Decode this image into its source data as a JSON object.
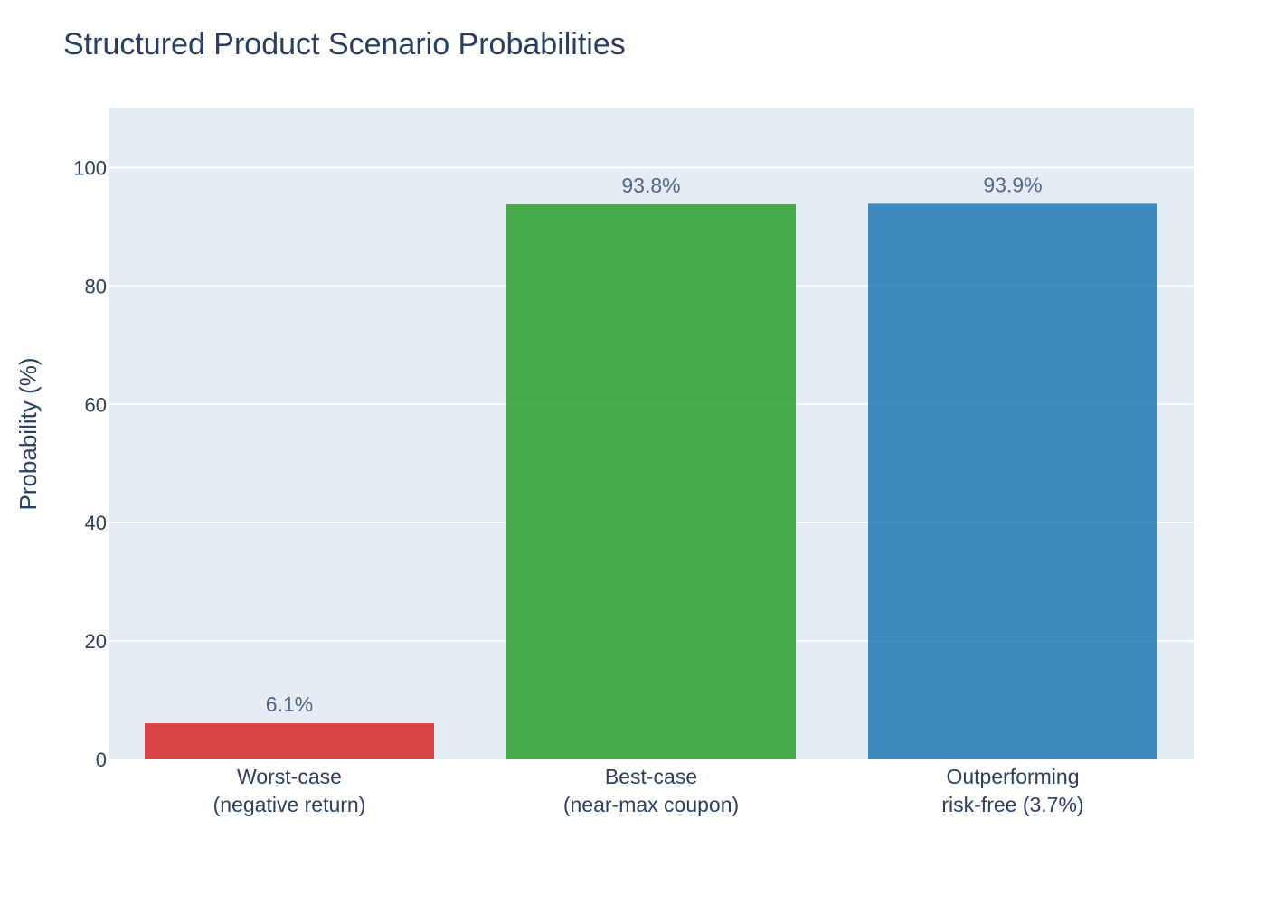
{
  "chart_data": {
    "type": "bar",
    "title": "Structured Product Scenario Probabilities",
    "xlabel": "",
    "ylabel": "Probability (%)",
    "categories": [
      [
        "Worst-case",
        "(negative return)"
      ],
      [
        "Best-case",
        "(near-max coupon)"
      ],
      [
        "Outperforming",
        "risk-free (3.7%)"
      ]
    ],
    "values": [
      6.1,
      93.8,
      93.9
    ],
    "data_labels": [
      "6.1%",
      "93.8%",
      "93.9%"
    ],
    "colors": [
      "#d62728",
      "#2ca02c",
      "#1f77b4"
    ],
    "ylim": [
      0,
      110
    ],
    "yticks": [
      0,
      20,
      40,
      60,
      80,
      100
    ],
    "grid": true,
    "legend": "none",
    "plot_background": "#e5ecf6",
    "bar_opacity": 0.85
  }
}
